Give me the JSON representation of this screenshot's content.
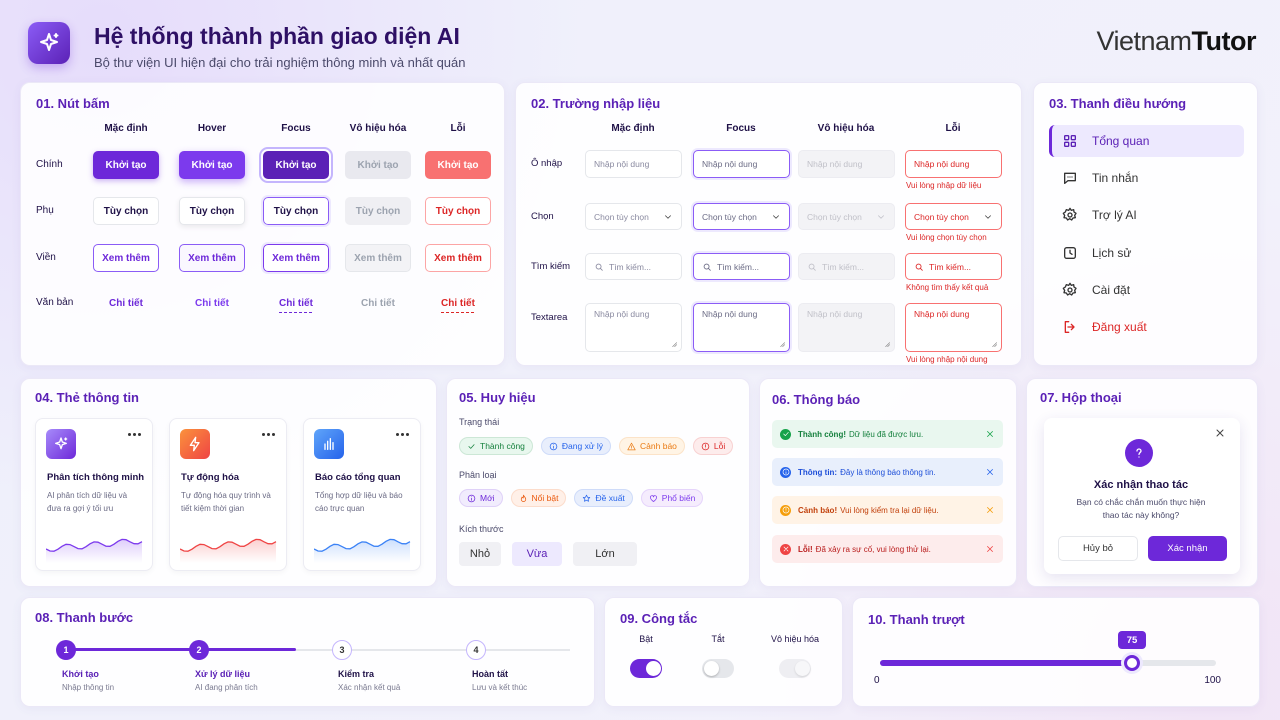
{
  "header": {
    "title": "Hệ thống thành phần giao diện AI",
    "subtitle": "Bộ thư viện UI hiện đại cho trải nghiệm thông minh và nhất quán",
    "brand_light": "Vietnam",
    "brand_bold": "Tutor"
  },
  "buttons": {
    "title": "01. Nút bấm",
    "states": [
      "Mặc định",
      "Hover",
      "Focus",
      "Vô hiệu hóa",
      "Lỗi"
    ],
    "rows": [
      {
        "label": "Chính",
        "text": "Khởi tạo"
      },
      {
        "label": "Phụ",
        "text": "Tùy chọn"
      },
      {
        "label": "Viền",
        "text": "Xem thêm"
      },
      {
        "label": "Văn bản",
        "text": "Chi tiết"
      }
    ]
  },
  "inputs": {
    "title": "02. Trường nhập liệu",
    "states": [
      "Mặc định",
      "Focus",
      "Vô hiệu hóa",
      "Lỗi"
    ],
    "rows": [
      {
        "label": "Ô nhập",
        "placeholder": "Nhập nội dung",
        "error": "Vui lòng nhập dữ liệu"
      },
      {
        "label": "Chọn",
        "placeholder": "Chọn tùy chọn",
        "error": "Vui lòng chọn tùy chọn"
      },
      {
        "label": "Tìm kiếm",
        "placeholder": "Tìm kiếm...",
        "error": "Không tìm thấy kết quả"
      },
      {
        "label": "Textarea",
        "placeholder": "Nhập nội dung",
        "error": "Vui lòng nhập nội dung"
      }
    ]
  },
  "nav": {
    "title": "03. Thanh điều hướng",
    "items": [
      "Tổng quan",
      "Tin nhắn",
      "Trợ lý AI",
      "Lịch sử",
      "Cài đặt",
      "Đăng xuất"
    ]
  },
  "cards": {
    "title": "04. Thẻ thông tin",
    "items": [
      {
        "title": "Phân tích thông minh",
        "text": "AI phân tích dữ liệu và đưa ra gợi ý tối ưu"
      },
      {
        "title": "Tự động hóa",
        "text": "Tự động hóa quy trình và tiết kiệm thời gian"
      },
      {
        "title": "Báo cáo tổng quan",
        "text": "Tổng hợp dữ liệu và báo cáo trực quan"
      }
    ]
  },
  "badges": {
    "title": "05. Huy hiệu",
    "groups": [
      {
        "label": "Trạng thái",
        "items": [
          "Thành công",
          "Đang xử lý",
          "Cảnh báo",
          "Lỗi"
        ]
      },
      {
        "label": "Phân loại",
        "items": [
          "Mới",
          "Nổi bật",
          "Đề xuất",
          "Phổ biến"
        ]
      },
      {
        "label": "Kích thước",
        "items": [
          "Nhỏ",
          "Vừa",
          "Lớn"
        ]
      }
    ]
  },
  "alerts": {
    "title": "06. Thông báo",
    "items": [
      {
        "label": "Thành công!",
        "text": "Dữ liệu đã được lưu."
      },
      {
        "label": "Thông tin:",
        "text": "Đây là thông báo thông tin."
      },
      {
        "label": "Cảnh báo!",
        "text": "Vui lòng kiểm tra lại dữ liệu."
      },
      {
        "label": "Lỗi!",
        "text": "Đã xảy ra sự cố, vui lòng thử lại."
      }
    ]
  },
  "dialog": {
    "title": "07. Hộp thoại",
    "heading": "Xác nhận thao tác",
    "text": "Bạn có chắc chắn muốn thực hiện thao tác này không?",
    "cancel": "Hủy bỏ",
    "confirm": "Xác nhận"
  },
  "steps": {
    "title": "08. Thanh bước",
    "items": [
      {
        "number": 1,
        "label": "Khởi tạo",
        "text": "Nhập thông tin"
      },
      {
        "number": 2,
        "label": "Xử lý dữ liệu",
        "text": "AI đang phân tích"
      },
      {
        "number": 3,
        "label": "Kiểm tra",
        "text": "Xác nhận kết quả"
      },
      {
        "number": 4,
        "label": "Hoàn tất",
        "text": "Lưu và kết thúc"
      }
    ]
  },
  "switches": {
    "title": "09. Công tắc",
    "items": [
      "Bật",
      "Tắt",
      "Vô hiệu hóa"
    ]
  },
  "slider": {
    "title": "10. Thanh trượt",
    "value": 75,
    "min": 0,
    "max": 100
  }
}
